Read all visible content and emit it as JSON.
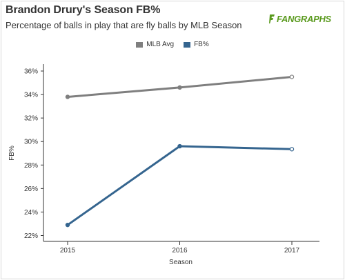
{
  "header": {
    "title": "Brandon Drury's Season FB%",
    "subtitle": "Percentage of balls in play that are fly balls by MLB Season",
    "logo_text": "FANGRAPHS"
  },
  "colors": {
    "mlb_avg": "#7f7f7f",
    "fb_pct": "#35658f",
    "logo": "#5a9a1e"
  },
  "chart_data": {
    "type": "line",
    "title": "Brandon Drury's Season FB%",
    "subtitle": "Percentage of balls in play that are fly balls by MLB Season",
    "xlabel": "Season",
    "ylabel": "FB%",
    "categories": [
      "2015",
      "2016",
      "2017"
    ],
    "series": [
      {
        "name": "MLB Avg",
        "values": [
          33.8,
          34.6,
          35.5
        ],
        "color": "#7f7f7f"
      },
      {
        "name": "FB%",
        "values": [
          22.9,
          29.6,
          29.35
        ],
        "color": "#35658f"
      }
    ],
    "ylim": [
      22,
      36
    ],
    "yticks": [
      22,
      24,
      26,
      28,
      30,
      32,
      34,
      36
    ],
    "ytick_labels": [
      "22%",
      "24%",
      "26%",
      "28%",
      "30%",
      "32%",
      "34%",
      "36%"
    ],
    "grid": false,
    "legend_position": "top-center"
  }
}
